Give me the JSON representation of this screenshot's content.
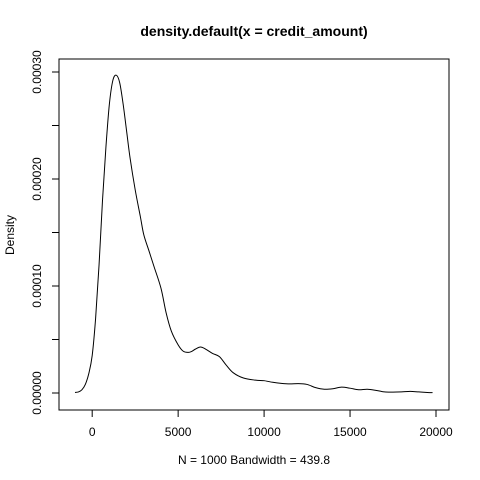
{
  "chart_data": {
    "type": "line",
    "title": "density.default(x = credit_amount)",
    "xlabel": "N = 1000   Bandwidth = 439.8",
    "ylabel": "Density",
    "xlim": [
      -1000,
      20000
    ],
    "ylim": [
      0,
      0.0003
    ],
    "x_ticks": [
      0,
      5000,
      10000,
      15000,
      20000
    ],
    "y_ticks": [
      0,
      0.0001,
      0.0002,
      0.0003
    ],
    "x_tick_labels": [
      "0",
      "5000",
      "10000",
      "15000",
      "20000"
    ],
    "y_tick_labels": [
      "0.00000",
      "0.00010",
      "0.00020",
      "0.00030"
    ],
    "grid": false,
    "series": [
      {
        "x": [
          -1000,
          -800,
          -600,
          -400,
          -200,
          0,
          200,
          400,
          600,
          800,
          1000,
          1200,
          1400,
          1600,
          1800,
          2000,
          2200,
          2500,
          2800,
          3000,
          3300,
          3600,
          4000,
          4300,
          4600,
          5000,
          5300,
          5600,
          5800,
          6000,
          6300,
          6600,
          7000,
          7400,
          7800,
          8200,
          8800,
          9500,
          10000,
          10500,
          11000,
          11500,
          12000,
          12500,
          13000,
          13500,
          14000,
          14500,
          15000,
          15500,
          16000,
          16500,
          17000,
          17500,
          18000,
          18500,
          19000,
          19500,
          19800
        ],
        "values": [
          5e-07,
          1e-06,
          3e-06,
          8e-06,
          1.8e-05,
          3.5e-05,
          7e-05,
          0.00012,
          0.00018,
          0.00023,
          0.00027,
          0.000292,
          0.000297,
          0.00029,
          0.00027,
          0.000245,
          0.00022,
          0.00019,
          0.000165,
          0.000148,
          0.000133,
          0.000118,
          9.8e-05,
          7.5e-05,
          5.8e-05,
          4.5e-05,
          3.9e-05,
          3.8e-05,
          3.9e-05,
          4.1e-05,
          4.3e-05,
          4.1e-05,
          3.7e-05,
          3.4e-05,
          2.6e-05,
          1.9e-05,
          1.4e-05,
          1.2e-05,
          1.15e-05,
          1e-05,
          9e-06,
          8.5e-06,
          8.8e-06,
          8e-06,
          5e-06,
          3.5e-06,
          4e-06,
          5.5e-06,
          4.5e-06,
          3e-06,
          3.5e-06,
          2.5e-06,
          1e-06,
          8e-07,
          1e-06,
          1.5e-06,
          1e-06,
          5e-07,
          3e-07
        ]
      }
    ]
  }
}
